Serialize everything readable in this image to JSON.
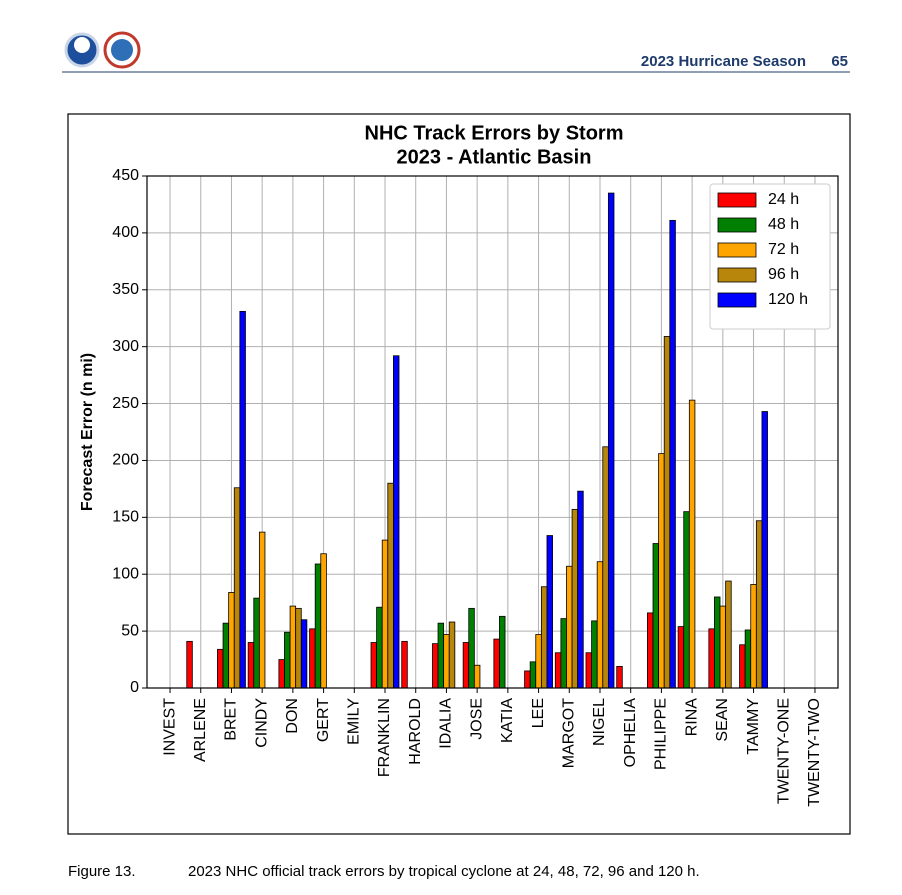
{
  "header": {
    "title": "2023 Hurricane Season",
    "page": 65
  },
  "chart_data": {
    "type": "bar",
    "title": "NHC Track Errors by Storm",
    "subtitle": "2023 - Atlantic Basin",
    "y_label": "Forecast Error (n mi)",
    "categories": [
      "INVEST",
      "ARLENE",
      "BRET",
      "CINDY",
      "DON",
      "GERT",
      "EMILY",
      "FRANKLIN",
      "HAROLD",
      "IDALIA",
      "JOSE",
      "KATIA",
      "LEE",
      "MARGOT",
      "NIGEL",
      "OPHELIA",
      "PHILIPPE",
      "RINA",
      "SEAN",
      "TAMMY",
      "TWENTY-ONE",
      "TWENTY-TWO"
    ],
    "series": [
      {
        "name": "24 h",
        "color": "#ff0000",
        "values": [
          null,
          41,
          34,
          40,
          25,
          52,
          null,
          40,
          41,
          39,
          40,
          43,
          15,
          31,
          31,
          19,
          66,
          54,
          52,
          38,
          null,
          null
        ]
      },
      {
        "name": "48 h",
        "color": "#008000",
        "values": [
          null,
          null,
          57,
          79,
          49,
          109,
          null,
          71,
          null,
          57,
          70,
          63,
          23,
          61,
          59,
          null,
          127,
          155,
          80,
          51,
          null,
          null
        ]
      },
      {
        "name": "72 h",
        "color": "#ffa500",
        "values": [
          null,
          null,
          84,
          137,
          72,
          118,
          null,
          130,
          null,
          47,
          20,
          null,
          47,
          107,
          111,
          null,
          206,
          253,
          72,
          91,
          null,
          null
        ]
      },
      {
        "name": "96 h",
        "color": "#b8860b",
        "values": [
          null,
          null,
          176,
          null,
          70,
          null,
          null,
          180,
          null,
          58,
          null,
          null,
          89,
          157,
          212,
          null,
          309,
          null,
          94,
          147,
          null,
          null
        ]
      },
      {
        "name": "120 h",
        "color": "#0000ff",
        "values": [
          null,
          null,
          331,
          null,
          60,
          null,
          null,
          292,
          null,
          null,
          null,
          null,
          134,
          173,
          435,
          null,
          411,
          null,
          null,
          243,
          null,
          null
        ]
      }
    ],
    "ylim": [
      0,
      450
    ],
    "yticks": [
      0,
      50,
      100,
      150,
      200,
      250,
      300,
      350,
      400,
      450
    ],
    "grid": true,
    "legend": "upper right"
  },
  "caption": {
    "label": "Figure 13.",
    "text": "2023 NHC official track errors by tropical cyclone at 24, 48, 72, 96 and 120 h."
  }
}
